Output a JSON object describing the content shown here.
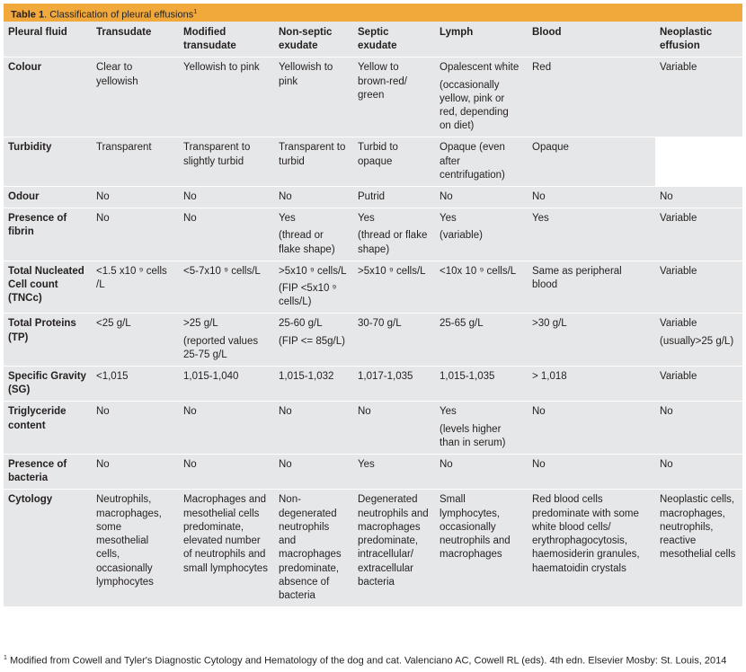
{
  "title": {
    "label": "Table 1",
    "text": "Classification of pleural effusions",
    "sup": "1"
  },
  "columns": [
    "Pleural fluid",
    "Transudate",
    "Modified transudate",
    "Non-septic exudate",
    "Septic exudate",
    "Lymph",
    "Blood",
    "Neoplastic effusion"
  ],
  "rows": [
    {
      "label": "Colour",
      "cells": [
        [
          "Clear to yellowish"
        ],
        [
          "Yellowish to pink"
        ],
        [
          "Yellowish to pink"
        ],
        [
          "Yellow to brown-red/ green"
        ],
        [
          "Opalescent white",
          "(occasionally yellow, pink or red, depending on diet)"
        ],
        [
          "Red"
        ],
        [
          "Variable"
        ]
      ]
    },
    {
      "label": "Turbidity",
      "cells": [
        [
          "Transparent"
        ],
        [
          "Transparent to slightly turbid"
        ],
        [
          "Transparent to turbid"
        ],
        [
          "Turbid to opaque"
        ],
        [
          "Opaque (even after centrifugation)"
        ],
        [
          "Opaque"
        ],
        []
      ]
    },
    {
      "label": "Odour",
      "cells": [
        [
          "No"
        ],
        [
          "No"
        ],
        [
          "No"
        ],
        [
          "Putrid"
        ],
        [
          "No"
        ],
        [
          "No"
        ],
        [
          "No"
        ]
      ]
    },
    {
      "label": "Presence of fibrin",
      "cells": [
        [
          "No"
        ],
        [
          "No"
        ],
        [
          "Yes",
          "(thread or flake shape)"
        ],
        [
          "Yes",
          "(thread or flake shape)"
        ],
        [
          "Yes",
          "(variable)"
        ],
        [
          "Yes"
        ],
        [
          "Variable"
        ]
      ]
    },
    {
      "label": "Total Nucleated Cell count (TNCc)",
      "cells": [
        [
          "<1.5 x10 ⁹ cells /L"
        ],
        [
          "<5-7x10 ⁹ cells/L"
        ],
        [
          ">5x10 ⁹ cells/L",
          "(FIP <5x10 ⁹ cells/L)"
        ],
        [
          ">5x10 ⁹ cells/L"
        ],
        [
          "<10x 10 ⁹  cells/L"
        ],
        [
          "Same as peripheral blood"
        ],
        [
          "Variable"
        ]
      ]
    },
    {
      "label": "Total Proteins (TP)",
      "cells": [
        [
          "<25 g/L"
        ],
        [
          ">25 g/L",
          "(reported values 25-75 g/L"
        ],
        [
          "25-60 g/L",
          "(FIP <= 85g/L)"
        ],
        [
          "30-70 g/L"
        ],
        [
          "25-65 g/L"
        ],
        [
          ">30 g/L"
        ],
        [
          "Variable",
          "(usually>25 g/L)"
        ]
      ]
    },
    {
      "label": "Specific Gravity (SG)",
      "cells": [
        [
          "<1,015"
        ],
        [
          "1,015-1,040"
        ],
        [
          "1,015-1,032"
        ],
        [
          "1,017-1,035"
        ],
        [
          "1,015-1,035"
        ],
        [
          "> 1,018"
        ],
        [
          "Variable"
        ]
      ]
    },
    {
      "label": "Triglyceride content",
      "cells": [
        [
          "No"
        ],
        [
          "No"
        ],
        [
          "No"
        ],
        [
          "No"
        ],
        [
          "Yes",
          "(levels higher than in serum)"
        ],
        [
          "No"
        ],
        [
          "No"
        ]
      ]
    },
    {
      "label": "Presence of bacteria",
      "cells": [
        [
          "No"
        ],
        [
          "No"
        ],
        [
          "No"
        ],
        [
          "Yes"
        ],
        [
          "No"
        ],
        [
          "No"
        ],
        [
          "No"
        ]
      ]
    },
    {
      "label": "Cytology",
      "cells": [
        [
          "Neutrophils, macrophages, some mesothelial cells, occasionally lymphocytes"
        ],
        [
          "Macrophages and mesothelial cells predominate, elevated number of neutrophils and small lymphocytes"
        ],
        [
          "Non-degenerated neutrophils and macrophages predominate, absence of bacteria"
        ],
        [
          "Degenerated neutrophils and macrophages predominate, intracellular/ extracellular bacteria"
        ],
        [
          "Small lymphocytes, occasionally neutrophils and macrophages"
        ],
        [
          "Red blood cells predominate with some white blood cells/ erythrophagocytosis, haemosiderin granules, haematoidin crystals"
        ],
        [
          "Neoplastic cells, macrophages, neutrophils, reactive mesothelial cells"
        ]
      ]
    }
  ],
  "footnote": {
    "sup": "1",
    "text": "Modified from Cowell and Tyler's Diagnostic Cytology and Hematology of the dog and cat. Valenciano AC, Cowell RL (eds). 4th edn. Elsevier Mosby: St. Louis, 2014"
  },
  "colors": {
    "header_bar": "#f2a93b",
    "table_bg": "#e6e7e8",
    "text": "#231f20"
  }
}
